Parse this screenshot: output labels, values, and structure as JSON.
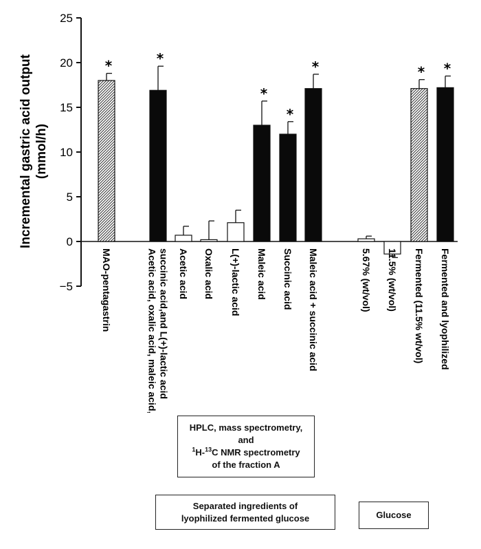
{
  "chart_data": {
    "type": "bar",
    "ylabel": "Incremental gastric acid output",
    "yunit": "(mmol/h)",
    "ylim": [
      -5,
      25
    ],
    "yticks": [
      -5,
      0,
      5,
      10,
      15,
      20,
      25
    ],
    "categories": [
      "MAO-pentagastrin",
      "Acetic acid, oxalic acid, maleic acid,|succinic acid,and L(+)-lactic acid",
      "Acetic acid",
      "Oxalic acid",
      "L(+)-lactic acid",
      "Maleic acid",
      "Succinic acid",
      "Maleic acid + succinic acid",
      "5.67% (wt/vol)",
      "11.5% (wt/vol)",
      "Fermented (11.5% wt/vol)",
      "Fermented and lyophilized"
    ],
    "values": [
      18.0,
      16.9,
      0.7,
      0.2,
      2.1,
      13.0,
      12.0,
      17.1,
      0.3,
      -1.4,
      17.1,
      17.2
    ],
    "errors": [
      0.8,
      2.7,
      1.0,
      2.1,
      1.4,
      2.7,
      1.4,
      1.6,
      0.3,
      0.4,
      1.0,
      1.3
    ],
    "significant": [
      true,
      true,
      false,
      false,
      false,
      true,
      true,
      true,
      false,
      false,
      true,
      true
    ],
    "fill": [
      "hatched",
      "black",
      "white",
      "white",
      "white",
      "black",
      "black",
      "black",
      "white",
      "white",
      "hatched",
      "black"
    ],
    "significance_marker": "*",
    "colors": {
      "black": "#0a0a0a",
      "white": "#ffffff",
      "hatch": "#555555",
      "axis": "#111111"
    }
  },
  "annotations": {
    "fraction_box": {
      "line1": "HPLC, mass spectrometry,",
      "line2": "and",
      "line3_sup1": "1",
      "line3_a": "H-",
      "line3_sup2": "13",
      "line3_b": "C NMR spectrometry",
      "line4": "of the fraction A"
    },
    "separated_box": {
      "line1": "Separated ingredients of",
      "line2": "lyophilized fermented glucose"
    },
    "glucose_box": {
      "text": "Glucose"
    }
  }
}
